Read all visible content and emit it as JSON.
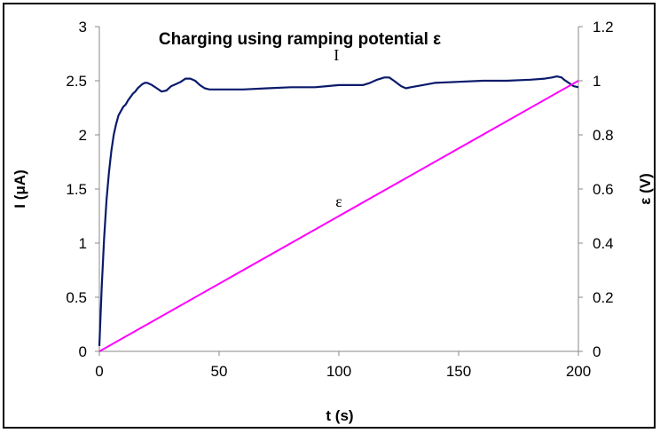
{
  "chart_data": {
    "type": "line",
    "title": "Charging using ramping potential ε",
    "xlabel": "t (s)",
    "ylabel_left": "I (μA)",
    "ylabel_right": "ε (V)",
    "xlim": [
      0,
      200
    ],
    "ylim_left": [
      0,
      3
    ],
    "ylim_right": [
      0,
      1.2
    ],
    "x_ticks": [
      "0",
      "50",
      "100",
      "150",
      "200"
    ],
    "y_ticks_left": [
      "0",
      "0.5",
      "1",
      "1.5",
      "2",
      "2.5",
      "3"
    ],
    "y_ticks_right": [
      "0",
      "0.2",
      "0.4",
      "0.6",
      "0.8",
      "1",
      "1.2"
    ],
    "grid": false,
    "legend": "none",
    "series": [
      {
        "label": "I",
        "axis": "left",
        "color": "#0a1a6b",
        "x": [
          0,
          1,
          2,
          3,
          4,
          5,
          6,
          7,
          8,
          9,
          10,
          11,
          12,
          13,
          14,
          15,
          16,
          17,
          18,
          19,
          20,
          22,
          24,
          26,
          28,
          30,
          32,
          34,
          36,
          38,
          40,
          42,
          44,
          46,
          50,
          60,
          70,
          80,
          90,
          95,
          100,
          105,
          110,
          113,
          116,
          119,
          121,
          123,
          126,
          128,
          130,
          135,
          140,
          150,
          160,
          170,
          180,
          186,
          189,
          191,
          193,
          194,
          196,
          198,
          200
        ],
        "y": [
          0.05,
          0.6,
          1.05,
          1.4,
          1.65,
          1.85,
          2.0,
          2.1,
          2.18,
          2.22,
          2.26,
          2.28,
          2.32,
          2.35,
          2.38,
          2.4,
          2.43,
          2.45,
          2.47,
          2.48,
          2.48,
          2.46,
          2.43,
          2.4,
          2.41,
          2.45,
          2.47,
          2.49,
          2.52,
          2.52,
          2.5,
          2.46,
          2.43,
          2.42,
          2.42,
          2.42,
          2.43,
          2.44,
          2.44,
          2.45,
          2.46,
          2.46,
          2.46,
          2.48,
          2.51,
          2.53,
          2.53,
          2.5,
          2.45,
          2.43,
          2.44,
          2.46,
          2.48,
          2.49,
          2.5,
          2.5,
          2.51,
          2.52,
          2.53,
          2.54,
          2.53,
          2.51,
          2.48,
          2.45,
          2.44
        ]
      },
      {
        "label": "ε",
        "axis": "right",
        "color": "#ff00ff",
        "x": [
          0,
          200
        ],
        "y": [
          0,
          1.0
        ]
      }
    ]
  }
}
